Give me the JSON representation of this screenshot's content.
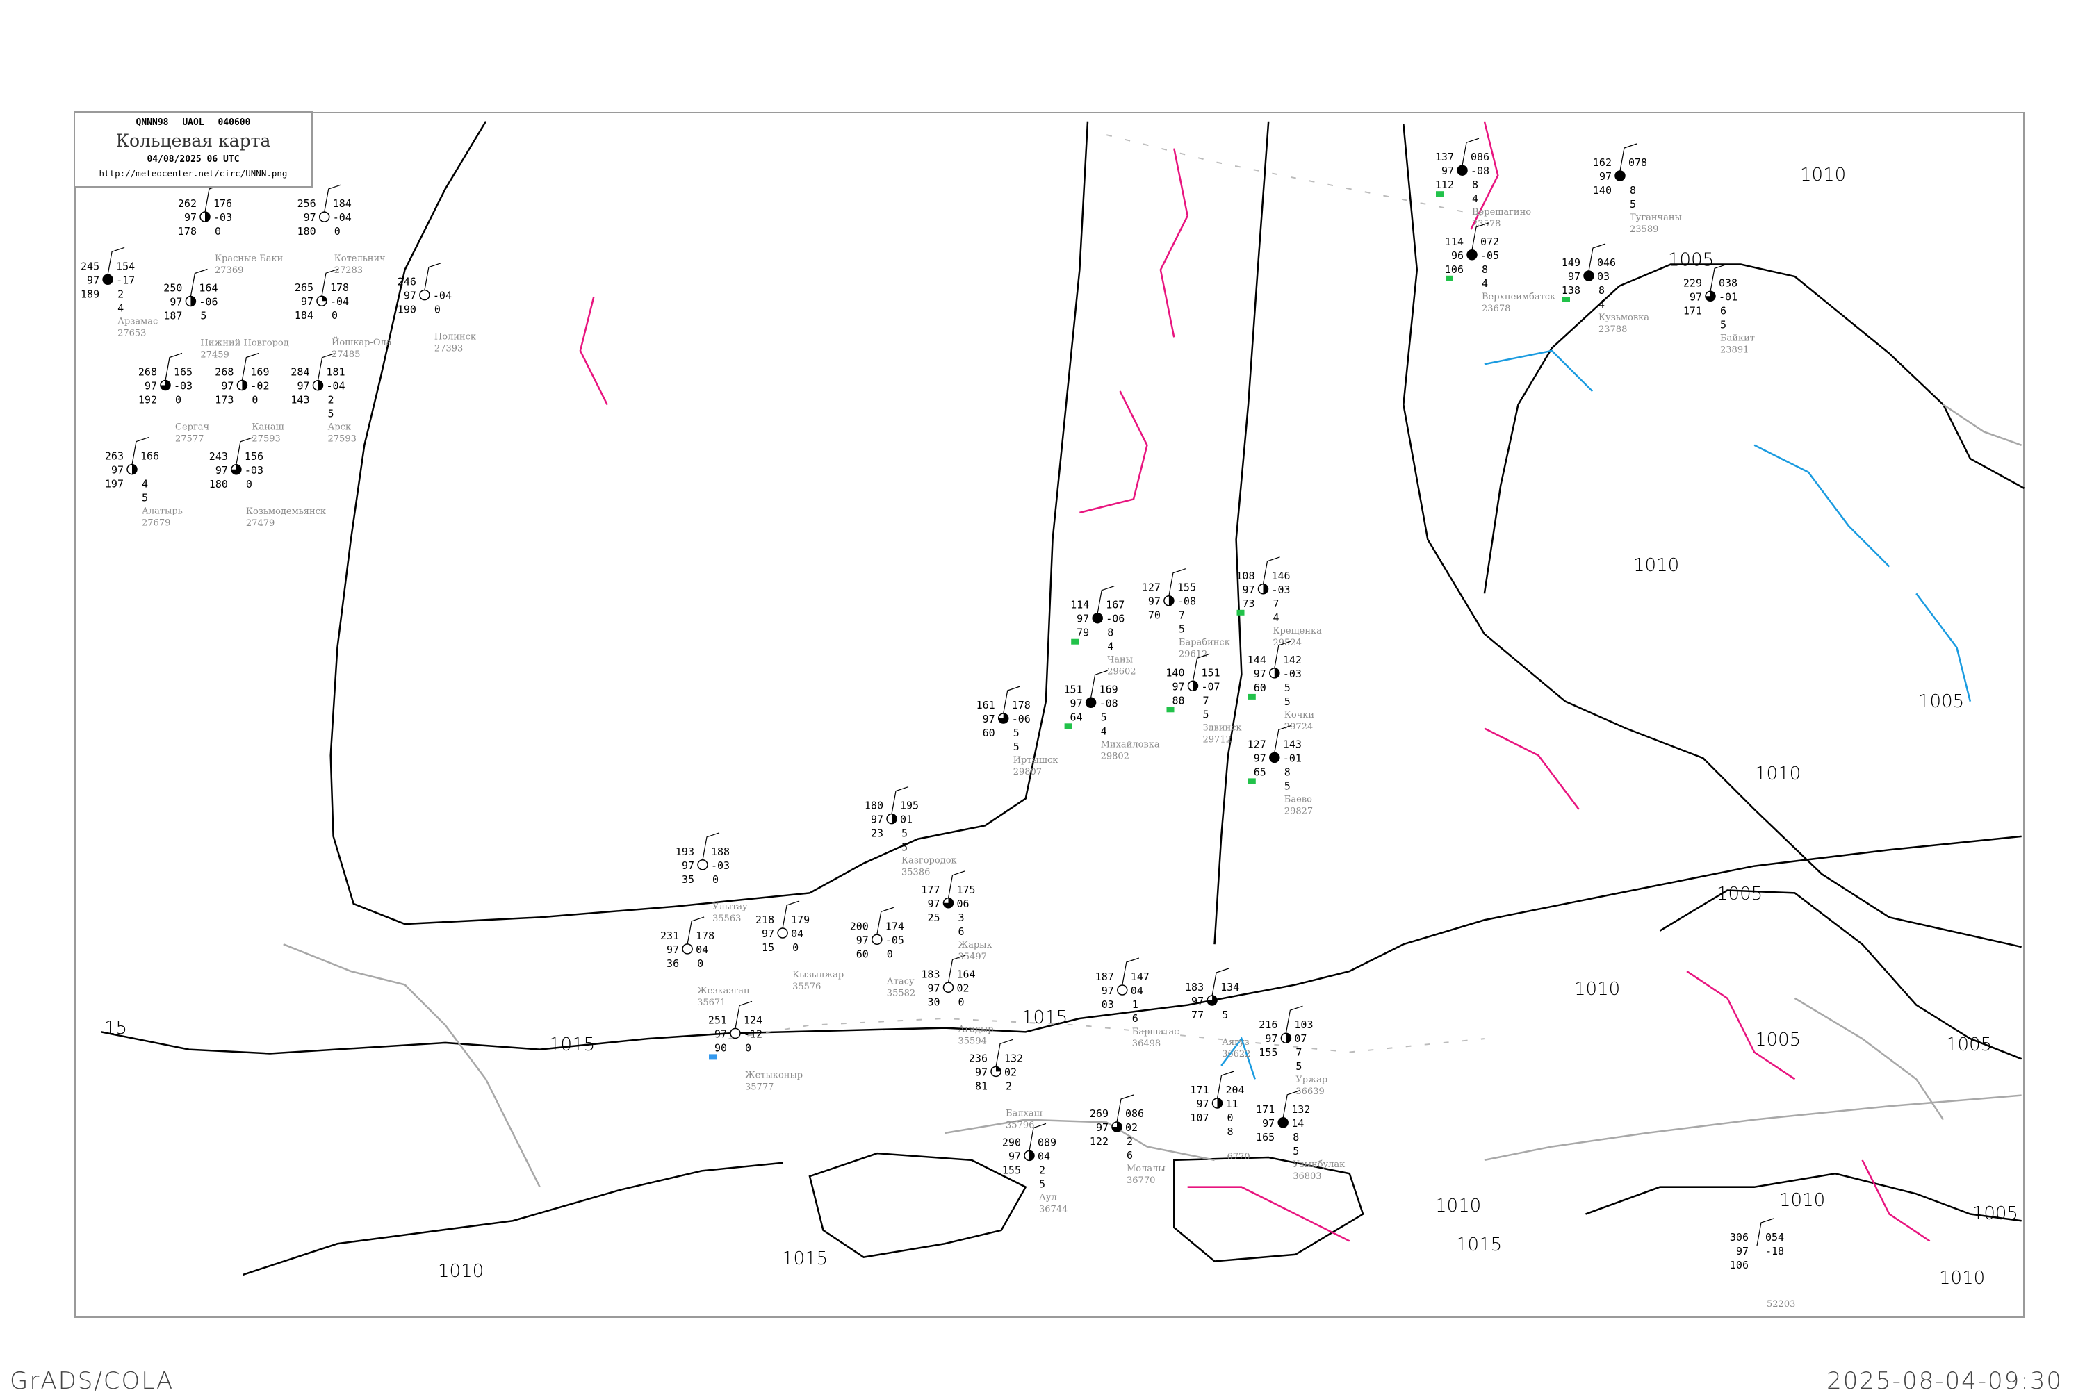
{
  "header": {
    "code": "QNNN98  UAOL  040600",
    "title": "Кольцевая карта",
    "date": "04/08/2025 06 UTC",
    "url": "http://meteocenter.net/circ/UNNN.png"
  },
  "footer": {
    "software": "GrADS/COLA",
    "timestamp": "2025-08-04-09:30"
  },
  "colors": {
    "isobar": "#000000",
    "isotherm": "#e8157f",
    "cold_line": "#1a9be0",
    "coastline": "#a8a8a8",
    "station_name": "#8a8a8a",
    "precip_marker": "#22c24a",
    "snow_marker": "#3399ee"
  },
  "isobar_labels": [
    "15",
    "1015",
    "1015",
    "1015",
    "1015",
    "1005",
    "1005",
    "1005",
    "1005",
    "1005",
    "1005",
    "1010",
    "1010",
    "1010",
    "1010",
    "1010",
    "1010",
    "1010",
    "1010"
  ],
  "stations": [
    {
      "name": "Красные Баки",
      "id": "27369",
      "tl": "262",
      "ml": "97",
      "bl": "178",
      "tr": "176",
      "mr": "-03",
      "br1": "0",
      "br2": "",
      "cover": 0.5
    },
    {
      "name": "Нижний Новгород",
      "id": "27459",
      "tl": "250",
      "ml": "97",
      "bl": "187",
      "tr": "164",
      "mr": "-06",
      "br1": "5",
      "br2": "",
      "cover": 0.5
    },
    {
      "name": "Арзамас",
      "id": "27653",
      "tl": "245",
      "ml": "97",
      "bl": "189",
      "tr": "154",
      "mr": "-17",
      "br1": "2",
      "br2": "4",
      "cover": 1
    },
    {
      "name": "Козьмодемьянск",
      "id": "27479",
      "tl": "243",
      "ml": "97",
      "bl": "180",
      "tr": "156",
      "mr": "-03",
      "br1": "0",
      "br2": "",
      "cover": 0.75
    },
    {
      "name": "Йошкар-Ола",
      "id": "27485",
      "tl": "265",
      "ml": "97",
      "bl": "184",
      "tr": "178",
      "mr": "-04",
      "br1": "0",
      "br2": "",
      "cover": 0.25
    },
    {
      "name": "Котельнич",
      "id": "27283",
      "tl": "256",
      "ml": "97",
      "bl": "180",
      "tr": "184",
      "mr": "-04",
      "br1": "0",
      "br2": "",
      "cover": 0
    },
    {
      "name": "Нолинск",
      "id": "27393",
      "tl": "246",
      "ml": "97",
      "bl": "190",
      "tr": "",
      "mr": "-04",
      "br1": "0",
      "br2": "",
      "cover": 0
    },
    {
      "name": "Канаш",
      "id": "27593",
      "tl": "268",
      "ml": "97",
      "bl": "173",
      "tr": "169",
      "mr": "-02",
      "br1": "0",
      "br2": "",
      "cover": 0.5
    },
    {
      "name": "Алатырь",
      "id": "27679",
      "tl": "263",
      "ml": "97",
      "bl": "197",
      "tr": "166",
      "mr": "",
      "br1": "4",
      "br2": "5",
      "cover": 0.5
    },
    {
      "name": "Сергач",
      "id": "27577",
      "tl": "268",
      "ml": "97",
      "bl": "192",
      "tr": "165",
      "mr": "-03",
      "br1": "0",
      "br2": "",
      "cover": 0.75
    },
    {
      "name": "Арск",
      "id": "27593",
      "tl": "284",
      "ml": "97",
      "bl": "143",
      "tr": "181",
      "mr": "-04",
      "br1": "2",
      "br2": "5",
      "cover": 0.5
    },
    {
      "name": "Верещагино",
      "id": "23578",
      "tl": "137",
      "ml": "97",
      "bl": "112",
      "tr": "086",
      "mr": "-08",
      "br1": "8",
      "br2": "4",
      "cover": 1,
      "marker": "precip"
    },
    {
      "name": "Верхнеимбатск",
      "id": "23678",
      "tl": "114",
      "ml": "96",
      "bl": "106",
      "tr": "072",
      "mr": "-05",
      "br1": "8",
      "br2": "4",
      "cover": 1,
      "marker": "precip"
    },
    {
      "name": "Туганчаны",
      "id": "23589",
      "tl": "162",
      "ml": "97",
      "bl": "140",
      "tr": "078",
      "mr": "",
      "br1": "8",
      "br2": "5",
      "cover": 1
    },
    {
      "name": "Кузьмовка",
      "id": "23788",
      "tl": "149",
      "ml": "97",
      "bl": "138",
      "tr": "046",
      "mr": "03",
      "br1": "8",
      "br2": "4",
      "cover": 1,
      "marker": "precip"
    },
    {
      "name": "Байкит",
      "id": "23891",
      "tl": "229",
      "ml": "97",
      "bl": "171",
      "tr": "038",
      "mr": "-01",
      "br1": "6",
      "br2": "5",
      "cover": 0.75
    },
    {
      "name": "Крещенка",
      "id": "29524",
      "tl": "108",
      "ml": "97",
      "bl": "73",
      "tr": "146",
      "mr": "-03",
      "br1": "7",
      "br2": "4",
      "cover": 0.5,
      "marker": "precip"
    },
    {
      "name": "Чаны",
      "id": "29602",
      "tl": "114",
      "ml": "97",
      "bl": "79",
      "tr": "167",
      "mr": "-06",
      "br1": "8",
      "br2": "4",
      "cover": 1,
      "marker": "precip"
    },
    {
      "name": "Барабинск",
      "id": "29612",
      "tl": "127",
      "ml": "97",
      "bl": "70",
      "tr": "155",
      "mr": "-08",
      "br1": "7",
      "br2": "5",
      "cover": 0.5
    },
    {
      "name": "Здвинск",
      "id": "29712",
      "tl": "140",
      "ml": "97",
      "bl": "88",
      "tr": "151",
      "mr": "-07",
      "br1": "7",
      "br2": "5",
      "cover": 0.5,
      "marker": "precip"
    },
    {
      "name": "Михайловка",
      "id": "29802",
      "tl": "151",
      "ml": "97",
      "bl": "64",
      "tr": "169",
      "mr": "-08",
      "br1": "5",
      "br2": "4",
      "cover": 1,
      "marker": "precip"
    },
    {
      "name": "Кочки",
      "id": "29724",
      "tl": "144",
      "ml": "97",
      "bl": "60",
      "tr": "142",
      "mr": "-03",
      "br1": "5",
      "br2": "5",
      "cover": 0.5,
      "marker": "precip"
    },
    {
      "name": "Баево",
      "id": "29827",
      "tl": "127",
      "ml": "97",
      "bl": "65",
      "tr": "143",
      "mr": "-01",
      "br1": "8",
      "br2": "5",
      "cover": 1,
      "marker": "precip"
    },
    {
      "name": "Иртышск",
      "id": "29807",
      "tl": "161",
      "ml": "97",
      "bl": "60",
      "tr": "178",
      "mr": "-06",
      "br1": "5",
      "br2": "5",
      "cover": 0.75
    },
    {
      "name": "Улытау",
      "id": "35563",
      "tl": "193",
      "ml": "97",
      "bl": "35",
      "tr": "188",
      "mr": "-03",
      "br1": "0",
      "br2": "",
      "cover": 0
    },
    {
      "name": "Жезказган",
      "id": "35671",
      "tl": "231",
      "ml": "97",
      "bl": "36",
      "tr": "178",
      "mr": "04",
      "br1": "0",
      "br2": "",
      "cover": 0
    },
    {
      "name": "Кызылжар",
      "id": "35576",
      "tl": "218",
      "ml": "97",
      "bl": "15",
      "tr": "179",
      "mr": "04",
      "br1": "0",
      "br2": "",
      "cover": 0
    },
    {
      "name": "Атасу",
      "id": "35582",
      "tl": "200",
      "ml": "97",
      "bl": "60",
      "tr": "174",
      "mr": "-05",
      "br1": "0",
      "br2": "",
      "cover": 0
    },
    {
      "name": "Казгородок",
      "id": "35386",
      "tl": "180",
      "ml": "97",
      "bl": "23",
      "tr": "195",
      "mr": "01",
      "br1": "5",
      "br2": "5",
      "cover": 0.5
    },
    {
      "name": "Агадыр",
      "id": "35594",
      "tl": "183",
      "ml": "97",
      "bl": "30",
      "tr": "164",
      "mr": "02",
      "br1": "0",
      "br2": "",
      "cover": 0
    },
    {
      "name": "Жарык",
      "id": "35497",
      "tl": "177",
      "ml": "97",
      "bl": "25",
      "tr": "175",
      "mr": "06",
      "br1": "3",
      "br2": "6",
      "cover": 0.75
    },
    {
      "name": "Жетыконыр",
      "id": "35777",
      "tl": "251",
      "ml": "97",
      "bl": "90",
      "tr": "124",
      "mr": "-12",
      "br1": "0",
      "br2": "",
      "cover": 0,
      "marker": "snow"
    },
    {
      "name": "Баршатас",
      "id": "36498",
      "tl": "187",
      "ml": "97",
      "bl": "03",
      "tr": "147",
      "mr": "04",
      "br1": "1",
      "br2": "6",
      "cover": 0
    },
    {
      "name": "Аягуз",
      "id": "36622",
      "tl": "183",
      "ml": "97",
      "bl": "77",
      "tr": "134",
      "mr": "",
      "br1": "5",
      "br2": "",
      "cover": 0.75
    },
    {
      "name": "Балхаш",
      "id": "35796",
      "tl": "236",
      "ml": "97",
      "bl": "81",
      "tr": "132",
      "mr": "02",
      "br1": "2",
      "br2": "",
      "cover": 0.25
    },
    {
      "name": "Уржар",
      "id": "36639",
      "tl": "216",
      "ml": "97",
      "bl": "155",
      "tr": "103",
      "mr": "07",
      "br1": "7",
      "br2": "5",
      "cover": 0.5
    },
    {
      "name": "Молалы",
      "id": "36770",
      "tl": "269",
      "ml": "97",
      "bl": "122",
      "tr": "086",
      "mr": "02",
      "br1": "2",
      "br2": "6",
      "cover": 0.75
    },
    {
      "name": "Аул",
      "id": "36744",
      "tl": "290",
      "ml": "97",
      "bl": "155",
      "tr": "089",
      "mr": "04",
      "br1": "2",
      "br2": "5",
      "cover": 0.5
    },
    {
      "name": "",
      "id": "6770",
      "tl": "171",
      "ml": "97",
      "bl": "107",
      "tr": "204",
      "mr": "11",
      "br1": "0",
      "br2": "8",
      "cover": 0.5
    },
    {
      "name": "Узынбулак",
      "id": "36803",
      "tl": "171",
      "ml": "97",
      "bl": "165",
      "tr": "132",
      "mr": "14",
      "br1": "8",
      "br2": "5",
      "cover": 1
    },
    {
      "name": "",
      "id": "52203",
      "tl": "306",
      "ml": "97",
      "bl": "106",
      "tr": "054",
      "mr": "-18",
      "br1": "",
      "br2": "",
      "cover": -1
    }
  ]
}
